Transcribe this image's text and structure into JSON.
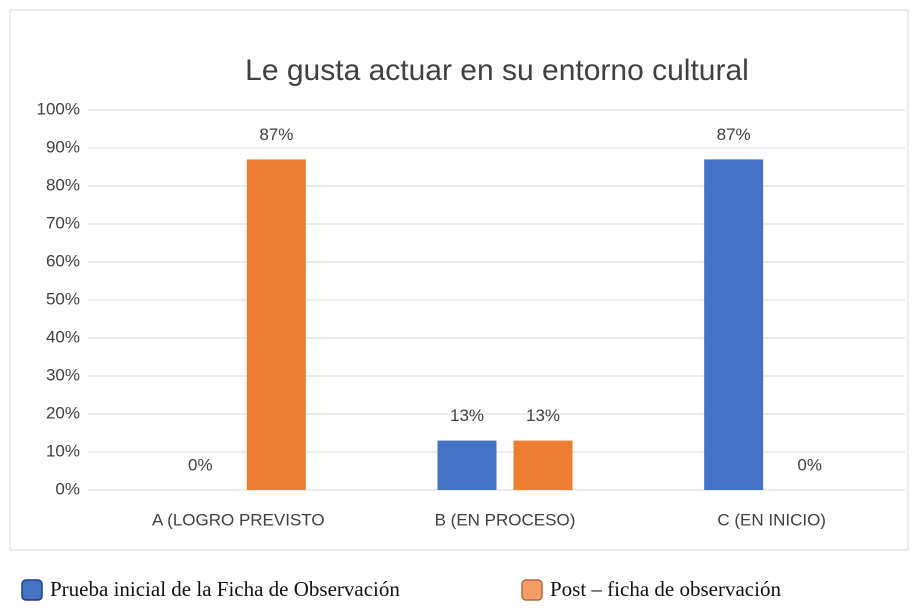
{
  "chart_data": {
    "type": "bar",
    "title": "Le gusta actuar en su entorno cultural",
    "categories": [
      "A (LOGRO PREVISTO",
      "B (EN PROCESO)",
      "C (EN INICIO)"
    ],
    "series": [
      {
        "name": "Prueba inicial de la Ficha de Observación",
        "color": "#4472c4",
        "values": [
          0,
          13,
          87
        ],
        "value_labels": [
          "0%",
          "13%",
          "87%"
        ]
      },
      {
        "name": "Post – ficha de observación",
        "color": "#ed7d31",
        "values": [
          87,
          13,
          0
        ],
        "value_labels": [
          "87%",
          "13%",
          "0%"
        ]
      }
    ],
    "ylim": [
      0,
      100
    ],
    "yticks": [
      {
        "value": 0,
        "label": "0%"
      },
      {
        "value": 10,
        "label": "10%"
      },
      {
        "value": 20,
        "label": "20%"
      },
      {
        "value": 30,
        "label": "30%"
      },
      {
        "value": 40,
        "label": "40%"
      },
      {
        "value": 50,
        "label": "50%"
      },
      {
        "value": 60,
        "label": "60%"
      },
      {
        "value": 70,
        "label": "70%"
      },
      {
        "value": 80,
        "label": "80%"
      },
      {
        "value": 90,
        "label": "90%"
      },
      {
        "value": 100,
        "label": "100%"
      }
    ],
    "grid": true,
    "legend": "bottom"
  }
}
